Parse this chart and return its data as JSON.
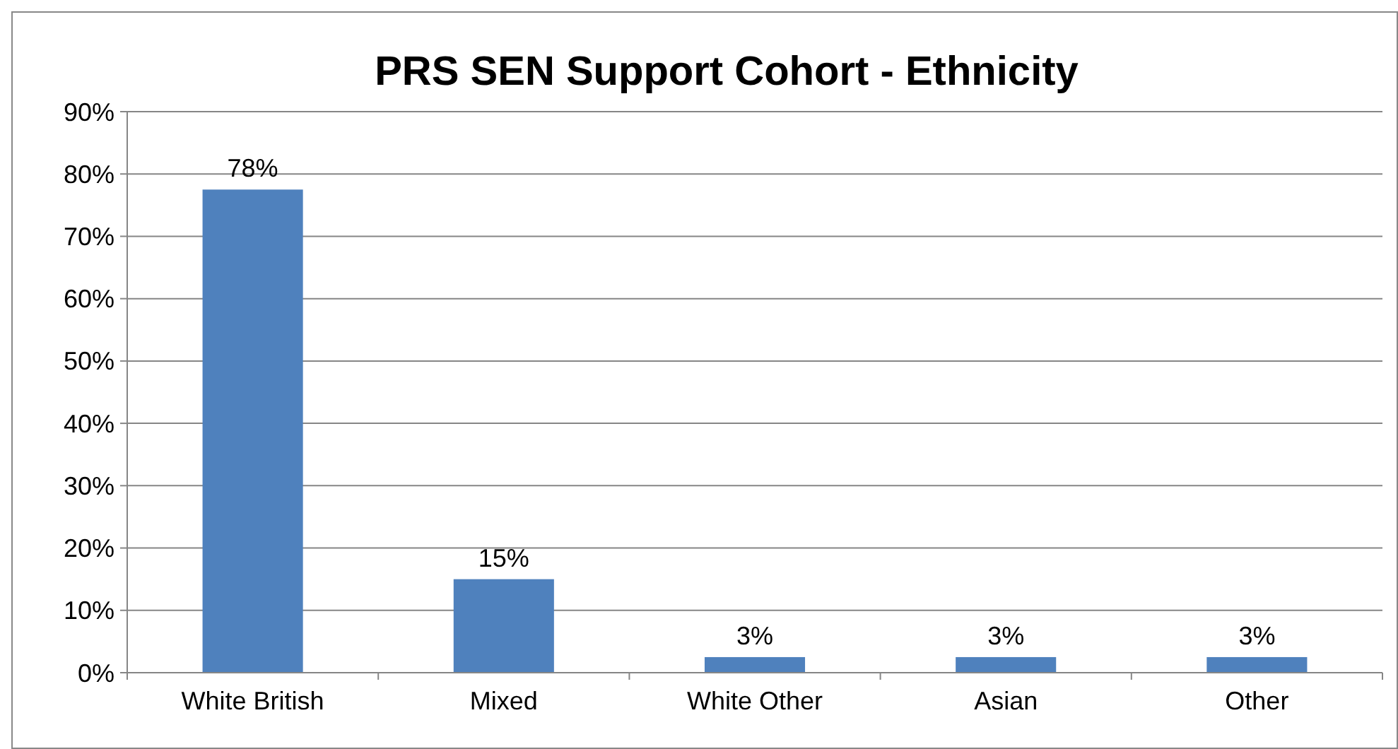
{
  "chart_data": {
    "type": "bar",
    "title": "PRS SEN Support Cohort - Ethnicity",
    "categories": [
      "White British",
      "Mixed",
      "White Other",
      "Asian",
      "Other"
    ],
    "values": [
      77.5,
      15,
      2.5,
      2.5,
      2.5
    ],
    "value_labels": [
      "78%",
      "15%",
      "3%",
      "3%",
      "3%"
    ],
    "color": "#4f81bd",
    "ylim": [
      0,
      90
    ],
    "yticks": [
      {
        "value": 0,
        "label": "0%"
      },
      {
        "value": 10,
        "label": "10%"
      },
      {
        "value": 20,
        "label": "20%"
      },
      {
        "value": 30,
        "label": "30%"
      },
      {
        "value": 40,
        "label": "40%"
      },
      {
        "value": 50,
        "label": "50%"
      },
      {
        "value": 60,
        "label": "60%"
      },
      {
        "value": 70,
        "label": "70%"
      },
      {
        "value": 80,
        "label": "80%"
      },
      {
        "value": 90,
        "label": "90%"
      }
    ],
    "grid": "y"
  }
}
